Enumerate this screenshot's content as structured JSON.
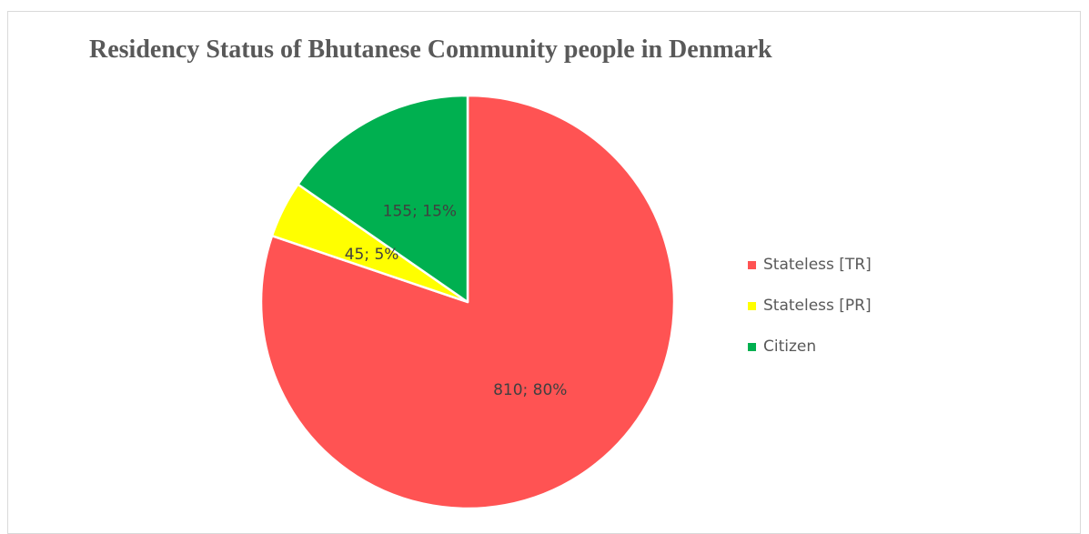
{
  "chart_data": {
    "type": "pie",
    "title": "Residency Status of Bhutanese Community people in Denmark",
    "slices": [
      {
        "name": "Stateless [TR]",
        "value": 810,
        "percent": 80,
        "label": "810; 80%",
        "color": "#ff5353"
      },
      {
        "name": "Stateless [PR]",
        "value": 45,
        "percent": 5,
        "label": "45; 5%",
        "color": "#ffff00"
      },
      {
        "name": "Citizen",
        "value": 155,
        "percent": 15,
        "label": "155; 15%",
        "color": "#00b050"
      }
    ],
    "start_angle": "12 o'clock",
    "direction": "clockwise",
    "legend_position": "right"
  }
}
